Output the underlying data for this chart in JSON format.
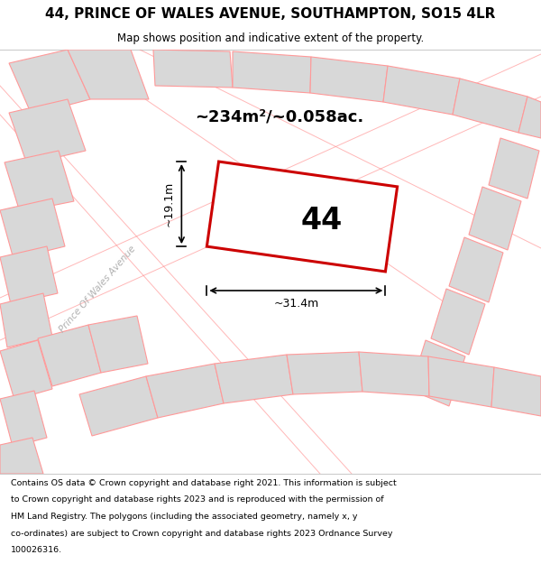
{
  "title_line1": "44, PRINCE OF WALES AVENUE, SOUTHAMPTON, SO15 4LR",
  "title_line2": "Map shows position and indicative extent of the property.",
  "area_text": "~234m²/~0.058ac.",
  "label_number": "44",
  "dim_width": "~31.4m",
  "dim_height": "~19.1m",
  "street_label": "Prince Of Wales Avenue",
  "footer_lines": [
    "Contains OS data © Crown copyright and database right 2021. This information is subject",
    "to Crown copyright and database rights 2023 and is reproduced with the permission of",
    "HM Land Registry. The polygons (including the associated geometry, namely x, y",
    "co-ordinates) are subject to Crown copyright and database rights 2023 Ordnance Survey",
    "100026316."
  ],
  "map_bg": "#f0f0f0",
  "plot_fill": "#ffffff",
  "plot_edge": "#cc0000",
  "neighbor_fill": "#d8d8d8",
  "neighbor_edge": "#ff9999",
  "road_color": "#ff8888",
  "title_bg": "#ffffff",
  "footer_bg": "#ffffff",
  "border_color": "#cccccc"
}
